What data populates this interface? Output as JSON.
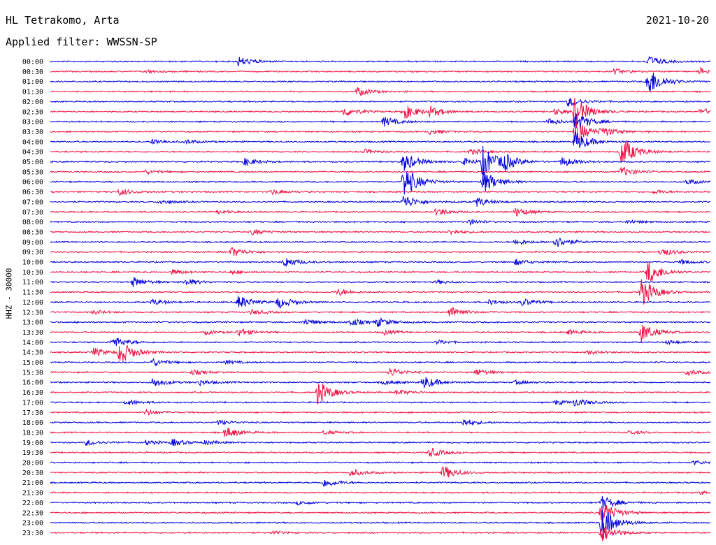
{
  "header": {
    "station": "HL Tetrakomo, Arta",
    "date": "2021-10-20",
    "filter": "Applied filter: WWSSN-SP"
  },
  "chart_data": {
    "type": "line",
    "ylabel": "HHZ - 30000",
    "colors": [
      "#0000dd",
      "#ee1144"
    ],
    "rows": [
      {
        "label": "00:00",
        "events": [
          [
            0.285,
            1.0
          ],
          [
            0.905,
            1.2
          ]
        ]
      },
      {
        "label": "00:30",
        "events": [
          [
            0.145,
            0.3
          ],
          [
            0.855,
            0.6
          ],
          [
            0.985,
            0.7
          ]
        ]
      },
      {
        "label": "01:00",
        "events": [
          [
            0.905,
            3.2
          ]
        ]
      },
      {
        "label": "01:30",
        "events": [
          [
            0.465,
            0.9
          ]
        ]
      },
      {
        "label": "02:00",
        "events": [
          [
            0.785,
            1.0
          ]
        ]
      },
      {
        "label": "02:30",
        "events": [
          [
            0.445,
            1.0
          ],
          [
            0.535,
            1.6
          ],
          [
            0.575,
            1.0
          ],
          [
            0.765,
            0.6
          ],
          [
            0.795,
            3.0
          ],
          [
            0.985,
            0.7
          ]
        ]
      },
      {
        "label": "03:00",
        "events": [
          [
            0.505,
            1.0
          ],
          [
            0.755,
            0.7
          ],
          [
            0.795,
            2.0
          ]
        ]
      },
      {
        "label": "03:30",
        "events": [
          [
            0.575,
            0.5
          ],
          [
            0.795,
            2.5
          ],
          [
            0.835,
            0.9
          ]
        ]
      },
      {
        "label": "04:00",
        "events": [
          [
            0.155,
            0.6
          ],
          [
            0.205,
            0.4
          ],
          [
            0.795,
            2.2
          ]
        ]
      },
      {
        "label": "04:30",
        "events": [
          [
            0.475,
            0.5
          ],
          [
            0.635,
            0.6
          ],
          [
            0.865,
            3.2
          ]
        ]
      },
      {
        "label": "05:00",
        "events": [
          [
            0.295,
            0.8
          ],
          [
            0.535,
            2.0
          ],
          [
            0.625,
            0.7
          ],
          [
            0.655,
            3.2
          ],
          [
            0.685,
            1.6
          ],
          [
            0.775,
            1.0
          ]
        ]
      },
      {
        "label": "05:30",
        "events": [
          [
            0.145,
            0.4
          ],
          [
            0.865,
            1.0
          ]
        ]
      },
      {
        "label": "06:00",
        "events": [
          [
            0.535,
            3.5
          ],
          [
            0.655,
            2.5
          ],
          [
            0.965,
            0.5
          ]
        ]
      },
      {
        "label": "06:30",
        "events": [
          [
            0.105,
            0.7
          ],
          [
            0.335,
            0.5
          ],
          [
            0.915,
            0.4
          ]
        ]
      },
      {
        "label": "07:00",
        "events": [
          [
            0.165,
            0.5
          ],
          [
            0.535,
            1.5
          ],
          [
            0.645,
            1.0
          ]
        ]
      },
      {
        "label": "07:30",
        "events": [
          [
            0.255,
            0.4
          ],
          [
            0.585,
            0.8
          ],
          [
            0.705,
            0.9
          ]
        ]
      },
      {
        "label": "08:00",
        "events": [
          [
            0.635,
            0.5
          ],
          [
            0.875,
            0.4
          ]
        ]
      },
      {
        "label": "08:30",
        "events": [
          [
            0.305,
            0.6
          ],
          [
            0.605,
            0.5
          ]
        ]
      },
      {
        "label": "09:00",
        "events": [
          [
            0.705,
            0.6
          ],
          [
            0.765,
            1.2
          ]
        ]
      },
      {
        "label": "09:30",
        "events": [
          [
            0.275,
            1.0
          ],
          [
            0.925,
            0.9
          ]
        ]
      },
      {
        "label": "10:00",
        "events": [
          [
            0.355,
            1.1
          ],
          [
            0.705,
            0.6
          ],
          [
            0.955,
            0.5
          ]
        ]
      },
      {
        "label": "10:30",
        "events": [
          [
            0.185,
            0.5
          ],
          [
            0.275,
            0.4
          ],
          [
            0.905,
            2.5
          ]
        ]
      },
      {
        "label": "11:00",
        "events": [
          [
            0.125,
            1.0
          ],
          [
            0.205,
            0.7
          ],
          [
            0.585,
            0.4
          ]
        ]
      },
      {
        "label": "11:30",
        "events": [
          [
            0.435,
            0.7
          ],
          [
            0.895,
            3.0
          ]
        ]
      },
      {
        "label": "12:00",
        "events": [
          [
            0.155,
            0.6
          ],
          [
            0.285,
            1.4
          ],
          [
            0.345,
            1.2
          ],
          [
            0.665,
            0.5
          ],
          [
            0.715,
            0.7
          ]
        ]
      },
      {
        "label": "12:30",
        "events": [
          [
            0.065,
            0.4
          ],
          [
            0.305,
            0.5
          ],
          [
            0.605,
            1.2
          ]
        ]
      },
      {
        "label": "13:00",
        "events": [
          [
            0.385,
            0.7
          ],
          [
            0.455,
            0.8
          ],
          [
            0.495,
            0.9
          ]
        ]
      },
      {
        "label": "13:30",
        "events": [
          [
            0.235,
            0.4
          ],
          [
            0.285,
            0.8
          ],
          [
            0.505,
            0.5
          ],
          [
            0.785,
            0.5
          ],
          [
            0.895,
            2.0
          ]
        ]
      },
      {
        "label": "14:00",
        "events": [
          [
            0.095,
            1.2
          ],
          [
            0.585,
            0.4
          ],
          [
            0.935,
            0.4
          ]
        ]
      },
      {
        "label": "14:30",
        "events": [
          [
            0.065,
            0.9
          ],
          [
            0.105,
            2.5
          ],
          [
            0.815,
            0.4
          ]
        ]
      },
      {
        "label": "15:00",
        "events": [
          [
            0.155,
            0.8
          ],
          [
            0.265,
            0.4
          ]
        ]
      },
      {
        "label": "15:30",
        "events": [
          [
            0.215,
            0.5
          ],
          [
            0.515,
            0.9
          ],
          [
            0.645,
            0.7
          ],
          [
            0.965,
            0.6
          ]
        ]
      },
      {
        "label": "16:00",
        "events": [
          [
            0.155,
            1.0
          ],
          [
            0.225,
            0.6
          ],
          [
            0.505,
            0.5
          ],
          [
            0.565,
            1.4
          ],
          [
            0.705,
            0.4
          ]
        ]
      },
      {
        "label": "16:30",
        "events": [
          [
            0.405,
            2.5
          ],
          [
            0.525,
            0.6
          ]
        ]
      },
      {
        "label": "17:00",
        "events": [
          [
            0.115,
            0.6
          ],
          [
            0.765,
            0.5
          ],
          [
            0.795,
            0.8
          ]
        ]
      },
      {
        "label": "17:30",
        "events": [
          [
            0.145,
            0.6
          ]
        ]
      },
      {
        "label": "18:00",
        "events": [
          [
            0.255,
            0.5
          ],
          [
            0.625,
            0.8
          ]
        ]
      },
      {
        "label": "18:30",
        "events": [
          [
            0.265,
            1.2
          ],
          [
            0.415,
            0.4
          ],
          [
            0.875,
            0.4
          ]
        ]
      },
      {
        "label": "19:00",
        "events": [
          [
            0.055,
            0.6
          ],
          [
            0.145,
            0.5
          ],
          [
            0.185,
            0.7
          ],
          [
            0.235,
            0.4
          ]
        ]
      },
      {
        "label": "19:30",
        "events": [
          [
            0.575,
            1.0
          ]
        ]
      },
      {
        "label": "20:00",
        "events": [
          [
            0.975,
            0.4
          ]
        ]
      },
      {
        "label": "20:30",
        "events": [
          [
            0.455,
            0.8
          ],
          [
            0.595,
            1.5
          ]
        ]
      },
      {
        "label": "21:00",
        "events": [
          [
            0.415,
            0.9
          ]
        ]
      },
      {
        "label": "21:30",
        "events": [
          [
            0.985,
            0.3
          ]
        ]
      },
      {
        "label": "22:00",
        "events": [
          [
            0.375,
            0.4
          ],
          [
            0.835,
            1.5
          ]
        ]
      },
      {
        "label": "22:30",
        "events": [
          [
            0.835,
            2.5
          ]
        ]
      },
      {
        "label": "23:00",
        "events": [
          [
            0.835,
            3.5
          ]
        ]
      },
      {
        "label": "23:30",
        "events": [
          [
            0.835,
            2.0
          ],
          [
            0.335,
            0.3
          ]
        ]
      }
    ]
  }
}
